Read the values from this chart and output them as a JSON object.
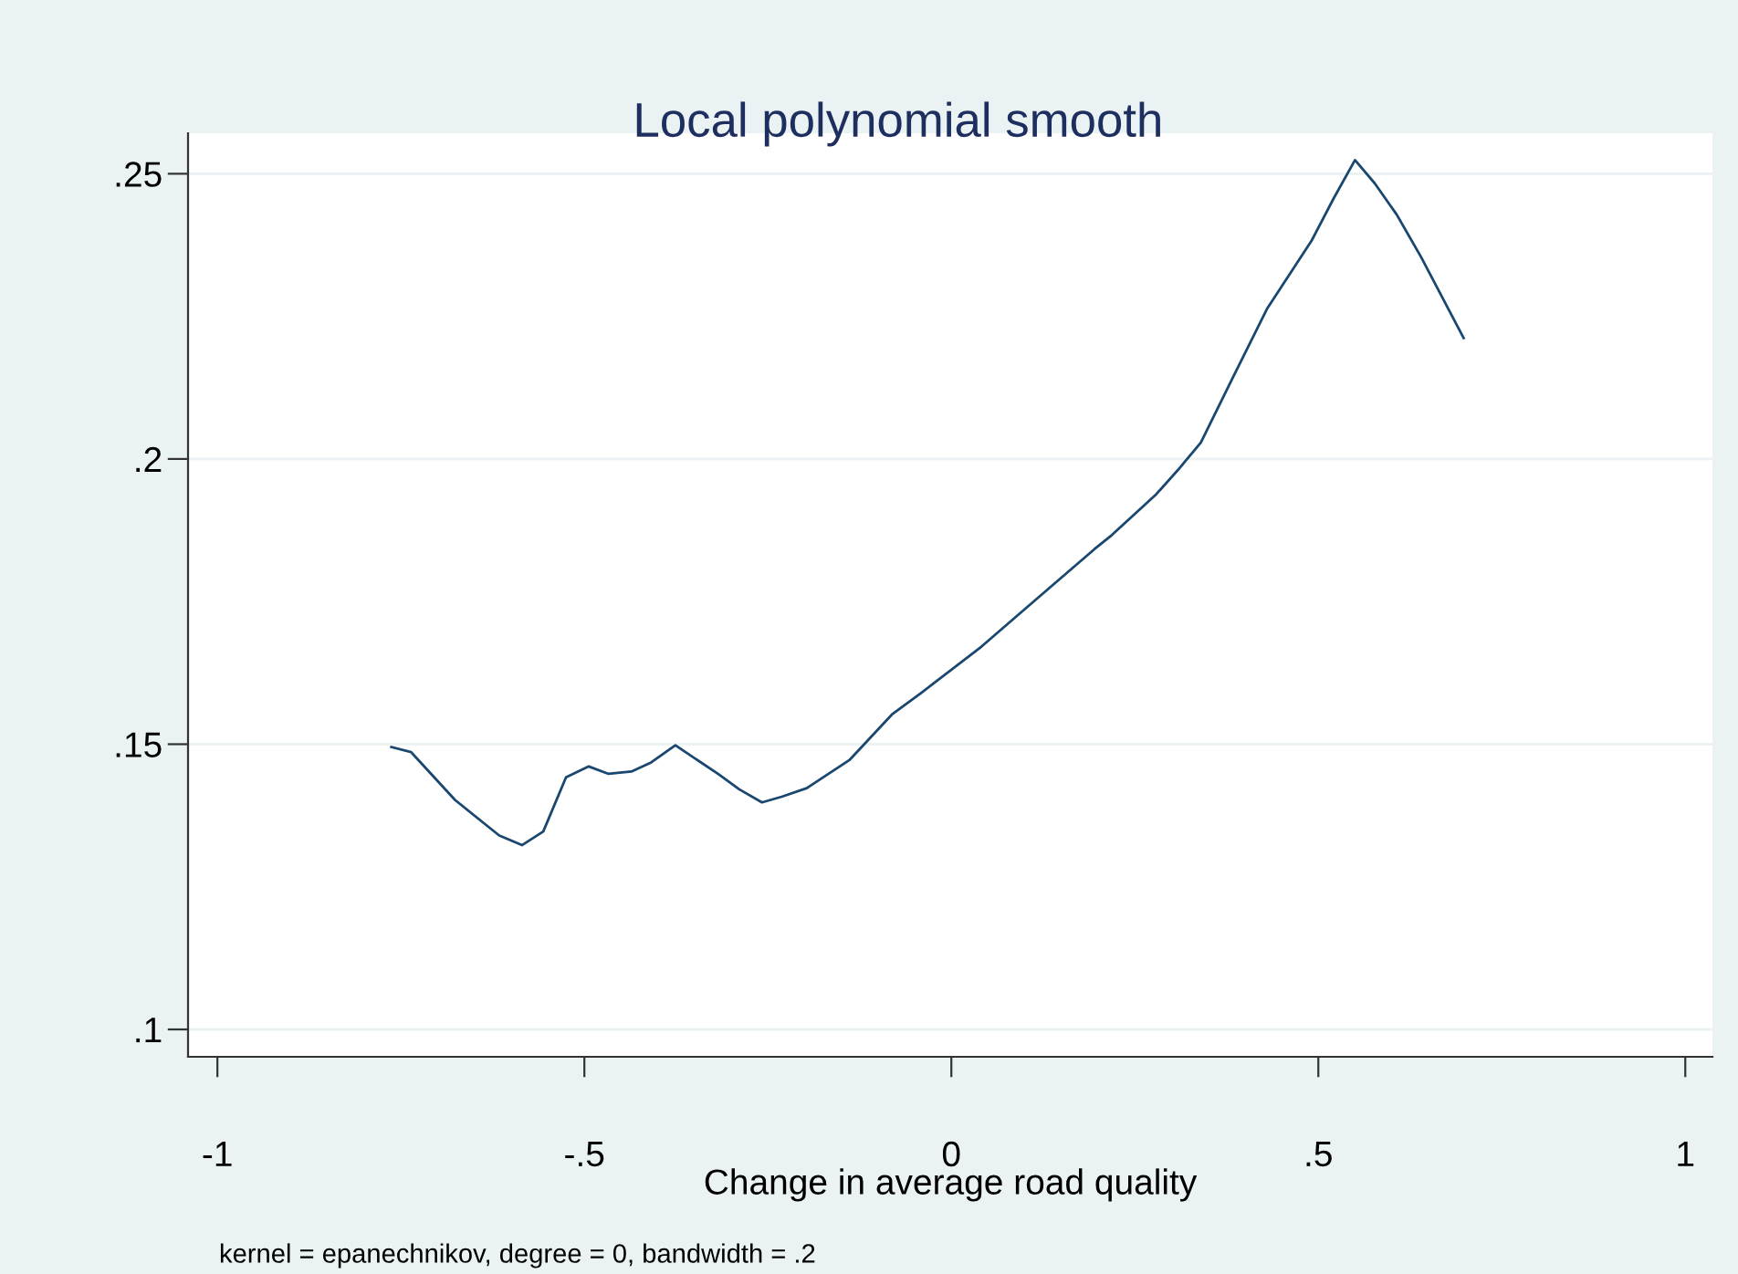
{
  "chart_data": {
    "type": "line",
    "title": "Local polynomial smooth",
    "xlabel": "Change in average road quality",
    "annotations": [
      "kernel = epanechnikov, degree = 0, bandwidth = .2"
    ],
    "x": [
      -0.763,
      -0.736,
      -0.676,
      -0.616,
      -0.585,
      -0.556,
      -0.525,
      -0.494,
      -0.467,
      -0.436,
      -0.409,
      -0.376,
      -0.318,
      -0.289,
      -0.258,
      -0.231,
      -0.197,
      -0.139,
      -0.081,
      -0.042,
      0.041,
      0.086,
      0.139,
      0.195,
      0.219,
      0.279,
      0.309,
      0.34,
      0.381,
      0.43,
      0.491,
      0.521,
      0.55,
      0.577,
      0.607,
      0.64,
      0.698
    ],
    "series": [
      {
        "color": "#1a476f",
        "values": [
          0.1495,
          0.1486,
          0.1402,
          0.134,
          0.1323,
          0.1347,
          0.1442,
          0.1461,
          0.1448,
          0.1452,
          0.1468,
          0.1498,
          0.1448,
          0.1421,
          0.1398,
          0.1408,
          0.1423,
          0.1472,
          0.1552,
          0.1589,
          0.1671,
          0.1721,
          0.178,
          0.1842,
          0.1867,
          0.1938,
          0.1981,
          0.2029,
          0.2136,
          0.2263,
          0.2383,
          0.2457,
          0.2524,
          0.2483,
          0.2428,
          0.2354,
          0.2212
        ]
      }
    ],
    "xlim": [
      -1.04,
      1.037
    ],
    "ylim": [
      0.0952,
      0.2571
    ],
    "xticks": [
      {
        "value": -1,
        "label": "-1"
      },
      {
        "value": -0.5,
        "label": "-.5"
      },
      0,
      {
        "value": 0.5,
        "label": ".5"
      },
      1
    ],
    "yticks": [
      {
        "value": 0.1,
        "label": ".1"
      },
      {
        "value": 0.15,
        "label": ".15"
      },
      {
        "value": 0.2,
        "label": ".2"
      },
      {
        "value": 0.25,
        "label": ".25"
      }
    ],
    "grid": "y",
    "line_style": "solid",
    "marker": "none"
  }
}
